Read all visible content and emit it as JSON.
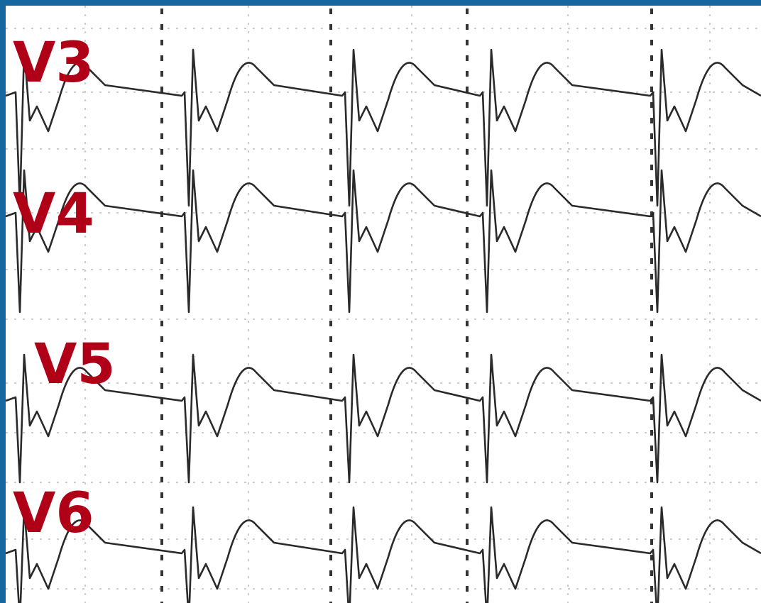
{
  "leads": [
    {
      "label": "V3"
    },
    {
      "label": "V4"
    },
    {
      "label": "V5"
    },
    {
      "label": "V6"
    }
  ]
}
